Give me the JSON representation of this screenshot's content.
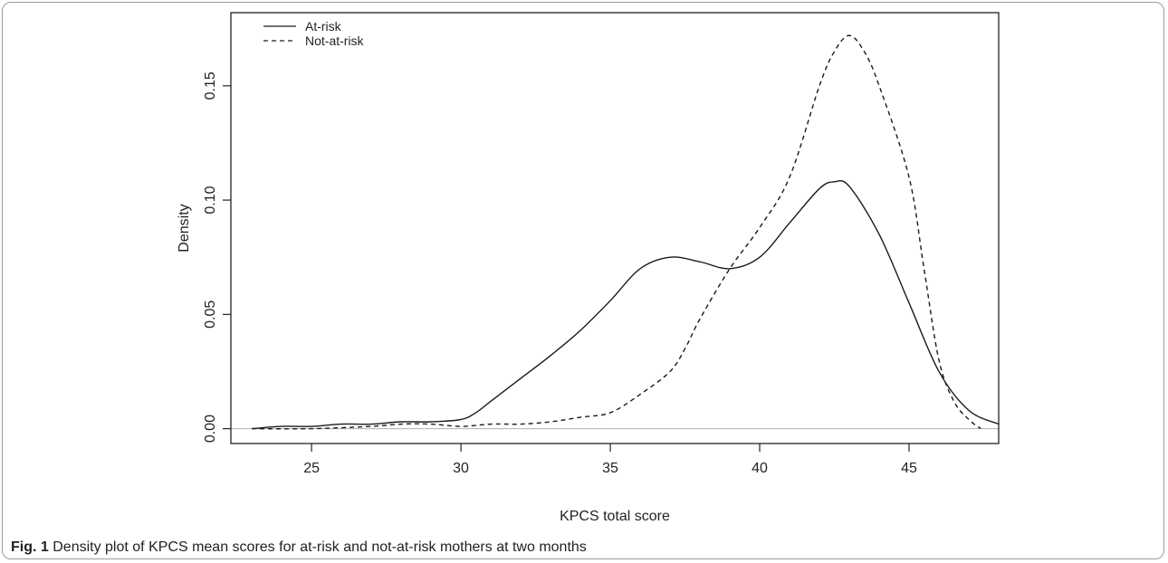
{
  "caption": {
    "label": "Fig. 1",
    "text": "Density plot of KPCS mean scores for at-risk and not-at-risk mothers at two months"
  },
  "chart_data": {
    "type": "line",
    "xlabel": "KPCS total score",
    "ylabel": "Density",
    "xlim": [
      22.3,
      48.0
    ],
    "ylim": [
      -0.0065,
      0.182
    ],
    "xticks": [
      25,
      30,
      35,
      40,
      45
    ],
    "yticks": [
      0.0,
      0.05,
      0.1,
      0.15
    ],
    "ytick_labels": [
      "0.00",
      "0.05",
      "0.10",
      "0.15"
    ],
    "baseline": 0,
    "legend_position": "top-left",
    "series": [
      {
        "name": "At-risk",
        "style": "solid",
        "x": [
          23,
          24,
          25,
          26,
          27,
          28,
          29,
          30,
          30.5,
          31,
          32,
          33,
          34,
          35,
          36,
          37,
          38,
          39,
          40,
          41,
          42,
          42.5,
          43,
          44,
          45,
          46,
          47,
          48
        ],
        "y": [
          0.0,
          0.001,
          0.001,
          0.002,
          0.002,
          0.003,
          0.003,
          0.004,
          0.007,
          0.012,
          0.022,
          0.032,
          0.043,
          0.056,
          0.07,
          0.075,
          0.073,
          0.07,
          0.075,
          0.09,
          0.105,
          0.108,
          0.106,
          0.085,
          0.055,
          0.025,
          0.008,
          0.002
        ]
      },
      {
        "name": "Not-at-risk",
        "style": "dashed",
        "x": [
          23,
          25,
          27,
          28,
          29,
          30,
          31,
          32,
          33,
          34,
          35,
          36,
          37,
          37.5,
          38,
          39,
          40,
          41,
          42,
          42.5,
          43,
          43.5,
          44,
          45,
          45.5,
          46,
          46.5,
          47,
          47.4
        ],
        "y": [
          0.0,
          0.0,
          0.001,
          0.002,
          0.002,
          0.001,
          0.002,
          0.002,
          0.003,
          0.005,
          0.007,
          0.015,
          0.025,
          0.035,
          0.048,
          0.07,
          0.088,
          0.11,
          0.15,
          0.165,
          0.172,
          0.165,
          0.15,
          0.11,
          0.07,
          0.03,
          0.012,
          0.004,
          0.0
        ]
      }
    ]
  }
}
